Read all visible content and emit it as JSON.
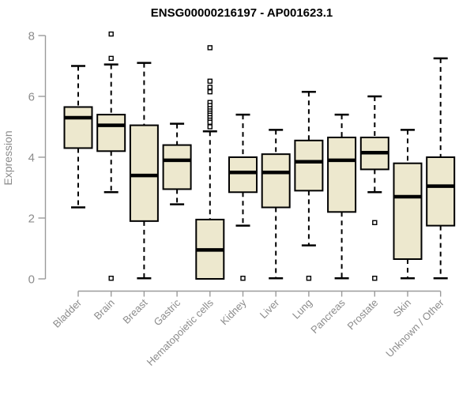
{
  "chart_data": {
    "type": "boxplot",
    "title": "ENSG00000216197 - AP001623.1",
    "xlabel": "",
    "ylabel": "Expression",
    "ylim": [
      0,
      8
    ],
    "yticks": [
      0,
      2,
      4,
      6,
      8
    ],
    "grid": false,
    "legend": false,
    "colors": {
      "box_fill": "#ede8ce",
      "box_stroke": "#000000",
      "median": "#000000",
      "whisker": "#000000",
      "axis_line": "#9b9b9b",
      "axis_text": "#8c8c8c",
      "title_text": "#000000"
    },
    "categories": [
      "Bladder",
      "Brain",
      "Breast",
      "Gastric",
      "Hematopoietic cells",
      "Kidney",
      "Liver",
      "Lung",
      "Pancreas",
      "Prostate",
      "Skin",
      "Unknown / Other"
    ],
    "boxes": [
      {
        "name": "Bladder",
        "whisker_low": 2.35,
        "q1": 4.3,
        "median": 5.3,
        "q3": 5.65,
        "whisker_high": 7.0,
        "outliers": []
      },
      {
        "name": "Brain",
        "whisker_low": 2.85,
        "q1": 4.2,
        "median": 5.05,
        "q3": 5.4,
        "whisker_high": 7.05,
        "outliers": [
          8.05,
          7.25,
          0.02
        ]
      },
      {
        "name": "Breast",
        "whisker_low": 0.02,
        "q1": 1.9,
        "median": 3.4,
        "q3": 5.05,
        "whisker_high": 7.1,
        "outliers": []
      },
      {
        "name": "Gastric",
        "whisker_low": 2.45,
        "q1": 2.95,
        "median": 3.9,
        "q3": 4.4,
        "whisker_high": 5.1,
        "outliers": []
      },
      {
        "name": "Hematopoietic cells",
        "whisker_low": 0.0,
        "q1": 0.0,
        "median": 0.95,
        "q3": 1.95,
        "whisker_high": 4.85,
        "outliers": [
          7.6,
          6.5,
          6.3,
          6.15,
          5.8,
          5.7,
          5.6,
          5.52,
          5.45,
          5.38,
          5.3,
          5.22,
          5.15,
          5.0
        ]
      },
      {
        "name": "Kidney",
        "whisker_low": 1.75,
        "q1": 2.85,
        "median": 3.5,
        "q3": 4.0,
        "whisker_high": 5.4,
        "outliers": [
          0.02
        ]
      },
      {
        "name": "Liver",
        "whisker_low": 0.02,
        "q1": 2.35,
        "median": 3.5,
        "q3": 4.1,
        "whisker_high": 4.9,
        "outliers": []
      },
      {
        "name": "Lung",
        "whisker_low": 1.1,
        "q1": 2.9,
        "median": 3.85,
        "q3": 4.55,
        "whisker_high": 6.15,
        "outliers": [
          0.02
        ]
      },
      {
        "name": "Pancreas",
        "whisker_low": 0.02,
        "q1": 2.2,
        "median": 3.9,
        "q3": 4.65,
        "whisker_high": 5.4,
        "outliers": []
      },
      {
        "name": "Prostate",
        "whisker_low": 2.85,
        "q1": 3.6,
        "median": 4.15,
        "q3": 4.65,
        "whisker_high": 6.0,
        "outliers": [
          1.85,
          0.02
        ]
      },
      {
        "name": "Skin",
        "whisker_low": 0.02,
        "q1": 0.65,
        "median": 2.7,
        "q3": 3.8,
        "whisker_high": 4.9,
        "outliers": []
      },
      {
        "name": "Unknown / Other",
        "whisker_low": 0.02,
        "q1": 1.75,
        "median": 3.05,
        "q3": 4.0,
        "whisker_high": 7.25,
        "outliers": []
      }
    ]
  }
}
